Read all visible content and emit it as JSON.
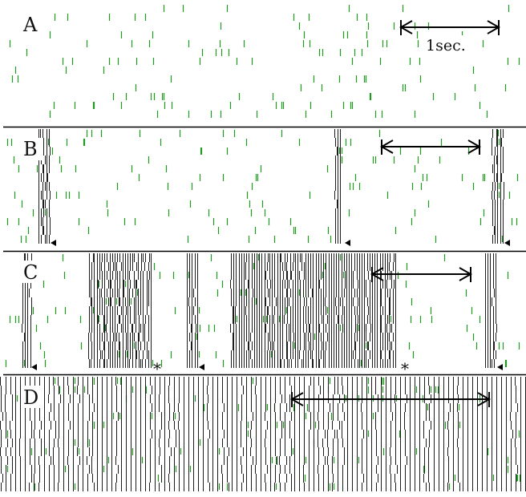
{
  "colors": {
    "background": "#ffffff",
    "spike_green": "#1f9a1f",
    "spike_dark": "#1c1c1c",
    "divider": "#000000"
  },
  "scale_bar": {
    "label": "1sec."
  },
  "panels": [
    {
      "label": "A",
      "description_marks": "sparse",
      "bursts": [],
      "markers": [],
      "continuous": false
    },
    {
      "label": "B",
      "bursts": [
        [
          47,
          62
        ],
        [
          417,
          425
        ],
        [
          613,
          628
        ]
      ],
      "markers": [
        {
          "type": "triangle",
          "x": 67
        },
        {
          "type": "triangle",
          "x": 434
        },
        {
          "type": "triangle",
          "x": 633
        }
      ],
      "continuous": false
    },
    {
      "label": "C",
      "bursts": [
        [
          27,
          38
        ],
        [
          110,
          190
        ],
        [
          232,
          247
        ],
        [
          287,
          494
        ],
        [
          604,
          618
        ]
      ],
      "markers": [
        {
          "type": "triangle",
          "x": 43
        },
        {
          "type": "asterisk",
          "x": 197,
          "text": "*"
        },
        {
          "type": "triangle",
          "x": 252
        },
        {
          "type": "asterisk",
          "x": 506,
          "text": "*"
        },
        {
          "type": "triangle",
          "x": 624
        }
      ],
      "continuous": false
    },
    {
      "label": "D",
      "bursts": [
        [
          0,
          656
        ]
      ],
      "markers": [],
      "continuous": true
    }
  ]
}
